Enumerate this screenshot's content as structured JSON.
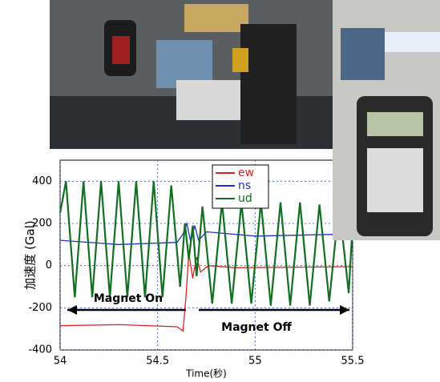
{
  "chart_data": {
    "type": "line",
    "xlabel": "Time(秒)",
    "ylabel": "加速度 (Gal)",
    "xlim": [
      54,
      55.5
    ],
    "xticks": [
      54,
      54.5,
      55,
      55.5
    ],
    "ylim": [
      -400,
      500
    ],
    "yticks": [
      -400,
      -200,
      0,
      200,
      400
    ],
    "grid": true,
    "legend": "top",
    "annotations": [
      "Magnet On",
      "Magnet Off"
    ],
    "series": [
      {
        "name": "ew",
        "color": "#e02020",
        "x": [
          54,
          54.3,
          54.6,
          54.63,
          54.645,
          54.66,
          54.68,
          54.7,
          54.72,
          54.76,
          54.9,
          55.5
        ],
        "values": [
          -285,
          -280,
          -290,
          -310,
          -150,
          60,
          -60,
          40,
          -30,
          0,
          -10,
          -5
        ]
      },
      {
        "name": "ns",
        "color": "#2030d0",
        "x": [
          54,
          54.3,
          54.6,
          54.63,
          54.65,
          54.67,
          54.69,
          54.71,
          54.75,
          55,
          55.5
        ],
        "values": [
          120,
          100,
          110,
          150,
          200,
          110,
          190,
          120,
          160,
          140,
          150
        ]
      },
      {
        "name": "ud",
        "color": "#107020",
        "x": [
          54,
          54.03,
          54.075,
          54.12,
          54.165,
          54.21,
          54.255,
          54.3,
          54.345,
          54.39,
          54.435,
          54.48,
          54.525,
          54.57,
          54.615,
          54.64,
          54.66,
          54.68,
          54.7,
          54.73,
          54.78,
          54.83,
          54.88,
          54.93,
          54.98,
          55.03,
          55.08,
          55.13,
          55.18,
          55.23,
          55.28,
          55.33,
          55.38,
          55.43,
          55.48,
          55.5
        ],
        "values": [
          250,
          400,
          -150,
          400,
          -150,
          400,
          -150,
          400,
          -150,
          400,
          -150,
          400,
          -150,
          380,
          -100,
          200,
          30,
          190,
          -50,
          280,
          -180,
          300,
          -180,
          300,
          -180,
          300,
          -190,
          300,
          -190,
          300,
          -190,
          290,
          -170,
          290,
          -130,
          200
        ]
      }
    ]
  }
}
